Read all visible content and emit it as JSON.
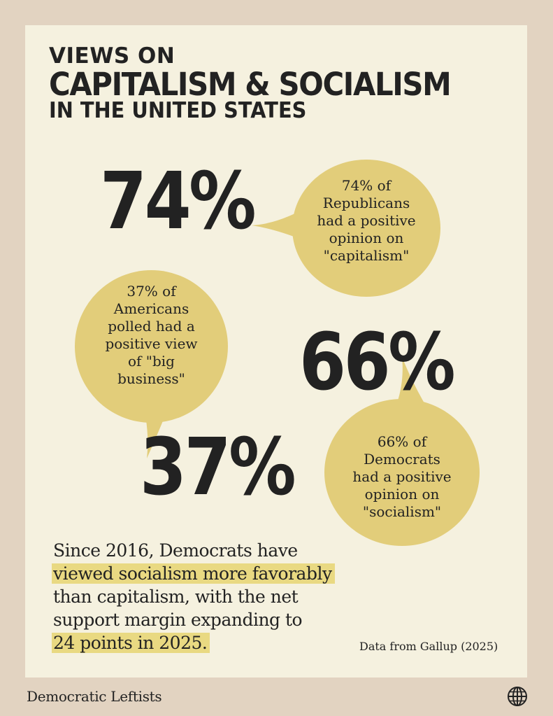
{
  "title": {
    "line1": "VIEWS ON",
    "line2": "CAPITALISM & SOCIALISM",
    "line3": "IN THE UNITED STATES"
  },
  "stats": {
    "republicans": {
      "value": "74%",
      "caption": [
        "74% of",
        "Republicans",
        "had a positive",
        "opinion on",
        "\"capitalism\""
      ]
    },
    "americans": {
      "value": "37%",
      "caption": [
        "37% of",
        "Americans",
        "polled had a",
        "positive view",
        "of \"big",
        "business\""
      ]
    },
    "democrats": {
      "value": "66%",
      "caption": [
        "66% of",
        "Democrats",
        "had a positive",
        "opinion on",
        "\"socialism\""
      ]
    }
  },
  "summary": {
    "line1": "Since 2016, Democrats have",
    "line2": "viewed socialism more favorably",
    "line3": "than capitalism, with the net",
    "line4": "support margin expanding to",
    "line5": "24 points in 2025."
  },
  "source": "Data from Gallup (2025)",
  "footer": {
    "brand": "Democratic Leftists",
    "icon": "globe-icon"
  },
  "colors": {
    "background": "#e2d3c1",
    "card": "#f5f1df",
    "bubble": "#e2cd7a",
    "highlight": "#e9d982",
    "text": "#222222"
  }
}
